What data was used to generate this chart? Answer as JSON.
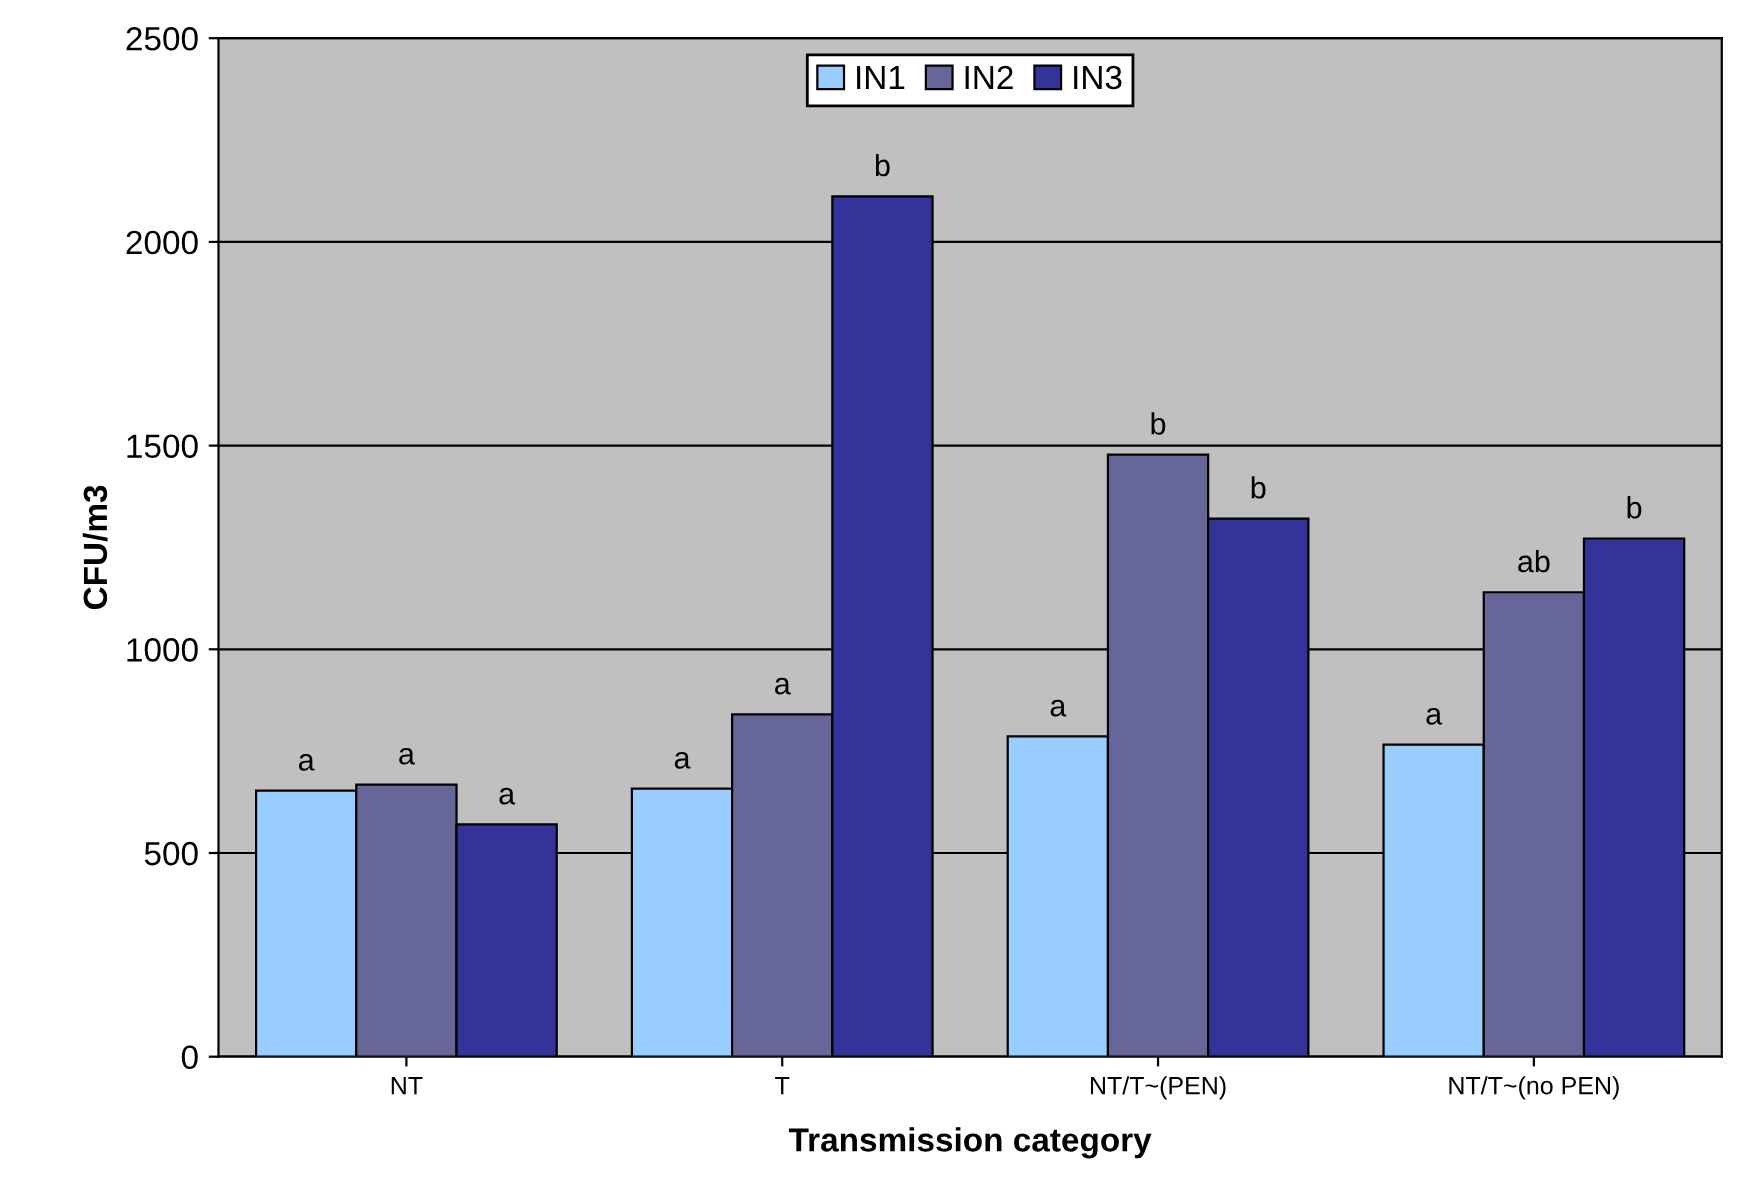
{
  "chart_data": {
    "type": "bar",
    "xlabel": "Transmission category",
    "ylabel": "CFU/m3",
    "categories": [
      "NT",
      "T",
      "NT/T~(PEN)",
      "NT/T~(no PEN)"
    ],
    "series": [
      {
        "name": "IN1",
        "color": "#99ccff",
        "values": [
          653,
          658,
          786,
          766
        ],
        "value_labels": [
          "a",
          "a",
          "a",
          "a"
        ]
      },
      {
        "name": "IN2",
        "color": "#666699",
        "values": [
          668,
          840,
          1478,
          1140
        ],
        "value_labels": [
          "a",
          "a",
          "b",
          "ab"
        ]
      },
      {
        "name": "IN3",
        "color": "#333399",
        "values": [
          570,
          2112,
          1321,
          1272
        ],
        "value_labels": [
          "a",
          "b",
          "b",
          "b"
        ]
      }
    ],
    "ylim": [
      0,
      2500
    ],
    "yticks": [
      0,
      500,
      1000,
      1500,
      2000,
      2500
    ],
    "grid": "y",
    "legend": "top"
  }
}
